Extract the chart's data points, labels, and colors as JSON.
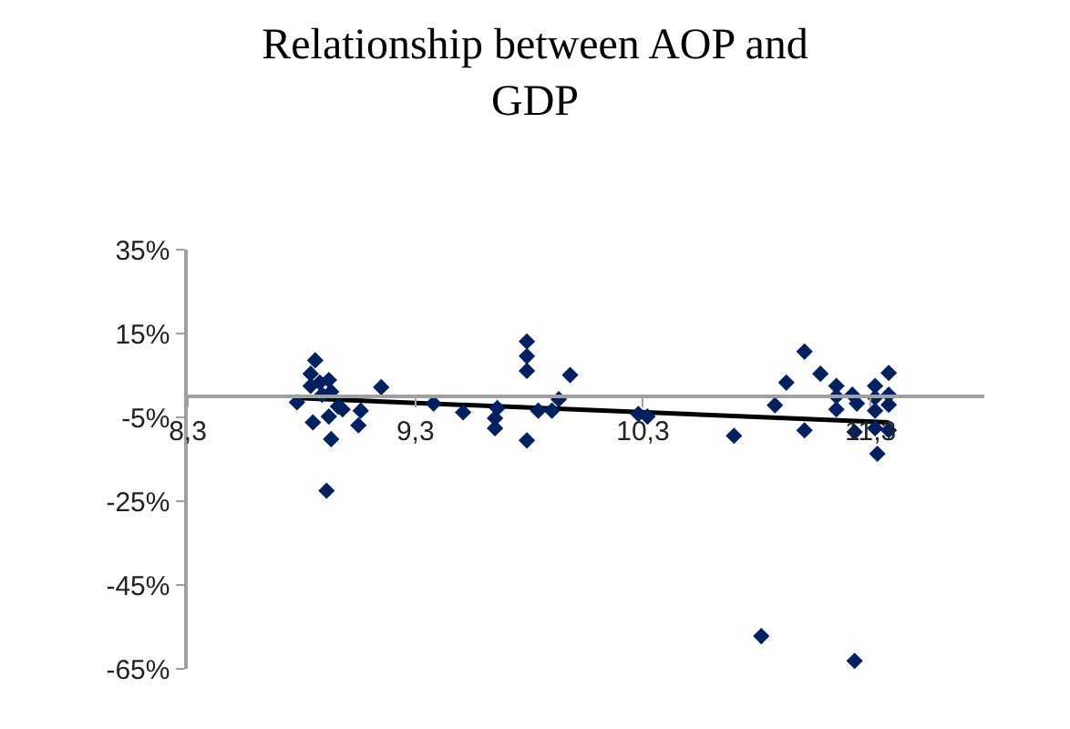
{
  "chart_data": {
    "type": "scatter",
    "title": "Relationship between AOP and GDP",
    "xlim": [
      8.3,
      11.8
    ],
    "xticks": [
      {
        "value": 8.3,
        "label": "8,3"
      },
      {
        "value": 9.3,
        "label": "9,3"
      },
      {
        "value": 10.3,
        "label": "10,3"
      },
      {
        "value": 11.3,
        "label": "11,3"
      }
    ],
    "ylim": [
      -65,
      35
    ],
    "yticks": [
      {
        "value": -65,
        "label": "-65%"
      },
      {
        "value": -45,
        "label": "-45%"
      },
      {
        "value": -25,
        "label": "-25%"
      },
      {
        "value": -5,
        "label": "-5%"
      },
      {
        "value": 15,
        "label": "15%"
      },
      {
        "value": 35,
        "label": "35%"
      }
    ],
    "legend": false,
    "marker": "diamond",
    "series": [
      {
        "color": "#002060",
        "x": [
          8.78,
          8.86,
          8.84,
          8.84,
          8.88,
          8.92,
          8.93,
          8.89,
          8.96,
          8.98,
          8.85,
          8.92,
          8.93,
          8.91,
          9.06,
          9.05,
          9.15,
          9.38,
          9.51,
          9.66,
          9.65,
          9.65,
          9.79,
          9.79,
          9.79,
          9.79,
          9.84,
          9.9,
          9.93,
          9.98,
          10.28,
          10.32,
          10.7,
          10.88,
          10.93,
          11.01,
          11.08,
          11.01,
          11.15,
          11.15,
          11.15,
          11.22,
          11.24,
          11.23,
          11.32,
          11.32,
          11.32,
          11.32,
          11.33,
          11.38,
          11.38,
          11.38,
          11.38,
          10.82,
          11.23
        ],
        "values": [
          -1.4,
          8.6,
          5.4,
          2.5,
          3.3,
          3.9,
          1.1,
          0.4,
          -2.4,
          -3.1,
          -6.2,
          -4.8,
          -10.2,
          -22.5,
          -3.4,
          -6.9,
          2.2,
          -1.7,
          -3.8,
          -2.8,
          -5.2,
          -7.6,
          13.1,
          9.6,
          6.1,
          -10.5,
          -3.4,
          -3.4,
          -0.7,
          5.1,
          -4.2,
          -4.8,
          -9.4,
          -2.1,
          3.3,
          10.7,
          5.4,
          -8.1,
          2.5,
          0,
          -3.1,
          0.4,
          -1.7,
          -8.5,
          2.5,
          -0.3,
          -3.4,
          -7.6,
          -13.7,
          5.6,
          0.4,
          -2.0,
          -8.1,
          -57.2,
          -63.1
        ]
      },
      {
        "type": "line",
        "marker": "none",
        "color": "#000000",
        "x": [
          8.78,
          11.38
        ],
        "values": [
          -0.4,
          -6.2
        ]
      }
    ]
  }
}
